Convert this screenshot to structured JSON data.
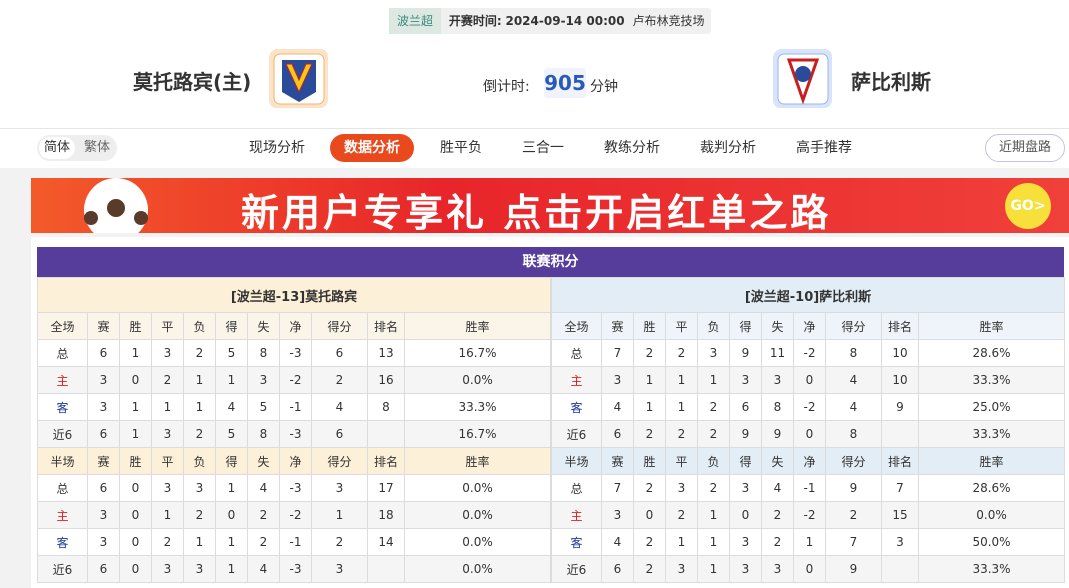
{
  "header": {
    "league": "波兰超",
    "kickoff_label": "开赛时间:",
    "kickoff": "2024-09-14 00:00",
    "venue": "卢布林竞技场",
    "home_team": "莫托路宾(主)",
    "away_team": "萨比利斯",
    "countdown_label": "倒计时:",
    "countdown": "905",
    "countdown_unit": "分钟"
  },
  "lang": [
    "简体",
    "繁体"
  ],
  "nav": {
    "items": [
      "现场分析",
      "数据分析",
      "胜平负",
      "三合一",
      "教练分析",
      "裁判分析",
      "高手推荐"
    ],
    "active": 1
  },
  "recent_button": "近期盘路",
  "banner": {
    "text": "新用户专享礼 点击开启红单之路",
    "button": "GO>"
  },
  "standings": {
    "title": "联赛积分",
    "home": {
      "title": "[波兰超-13]莫托路宾",
      "full": {
        "columns": [
          "全场",
          "赛",
          "胜",
          "平",
          "负",
          "得",
          "失",
          "净",
          "得分",
          "排名",
          "胜率"
        ],
        "rows": [
          [
            "总",
            6,
            1,
            3,
            2,
            5,
            8,
            -3,
            6,
            13,
            "16.7%"
          ],
          [
            "主",
            3,
            0,
            2,
            1,
            1,
            3,
            -2,
            2,
            16,
            "0.0%"
          ],
          [
            "客",
            3,
            1,
            1,
            1,
            4,
            5,
            -1,
            4,
            8,
            "33.3%"
          ],
          [
            "近6",
            6,
            1,
            3,
            2,
            5,
            8,
            -3,
            6,
            null,
            "16.7%"
          ]
        ]
      },
      "half": {
        "columns": [
          "半场",
          "赛",
          "胜",
          "平",
          "负",
          "得",
          "失",
          "净",
          "得分",
          "排名",
          "胜率"
        ],
        "rows": [
          [
            "总",
            6,
            0,
            3,
            3,
            1,
            4,
            -3,
            3,
            17,
            "0.0%"
          ],
          [
            "主",
            3,
            0,
            1,
            2,
            0,
            2,
            -2,
            1,
            18,
            "0.0%"
          ],
          [
            "客",
            3,
            0,
            2,
            1,
            1,
            2,
            -1,
            2,
            14,
            "0.0%"
          ],
          [
            "近6",
            6,
            0,
            3,
            3,
            1,
            4,
            -3,
            3,
            null,
            "0.0%"
          ]
        ]
      }
    },
    "away": {
      "title": "[波兰超-10]萨比利斯",
      "full": {
        "columns": [
          "全场",
          "赛",
          "胜",
          "平",
          "负",
          "得",
          "失",
          "净",
          "得分",
          "排名",
          "胜率"
        ],
        "rows": [
          [
            "总",
            7,
            2,
            2,
            3,
            9,
            11,
            -2,
            8,
            10,
            "28.6%"
          ],
          [
            "主",
            3,
            1,
            1,
            1,
            3,
            3,
            0,
            4,
            10,
            "33.3%"
          ],
          [
            "客",
            4,
            1,
            1,
            2,
            6,
            8,
            -2,
            4,
            9,
            "25.0%"
          ],
          [
            "近6",
            6,
            2,
            2,
            2,
            9,
            9,
            0,
            8,
            null,
            "33.3%"
          ]
        ]
      },
      "half": {
        "columns": [
          "半场",
          "赛",
          "胜",
          "平",
          "负",
          "得",
          "失",
          "净",
          "得分",
          "排名",
          "胜率"
        ],
        "rows": [
          [
            "总",
            7,
            2,
            3,
            2,
            3,
            4,
            -1,
            9,
            7,
            "28.6%"
          ],
          [
            "主",
            3,
            0,
            2,
            1,
            0,
            2,
            -2,
            2,
            15,
            "0.0%"
          ],
          [
            "客",
            4,
            2,
            1,
            1,
            3,
            2,
            1,
            7,
            3,
            "50.0%"
          ],
          [
            "近6",
            6,
            2,
            3,
            1,
            3,
            3,
            0,
            9,
            null,
            "33.3%"
          ]
        ]
      }
    }
  }
}
